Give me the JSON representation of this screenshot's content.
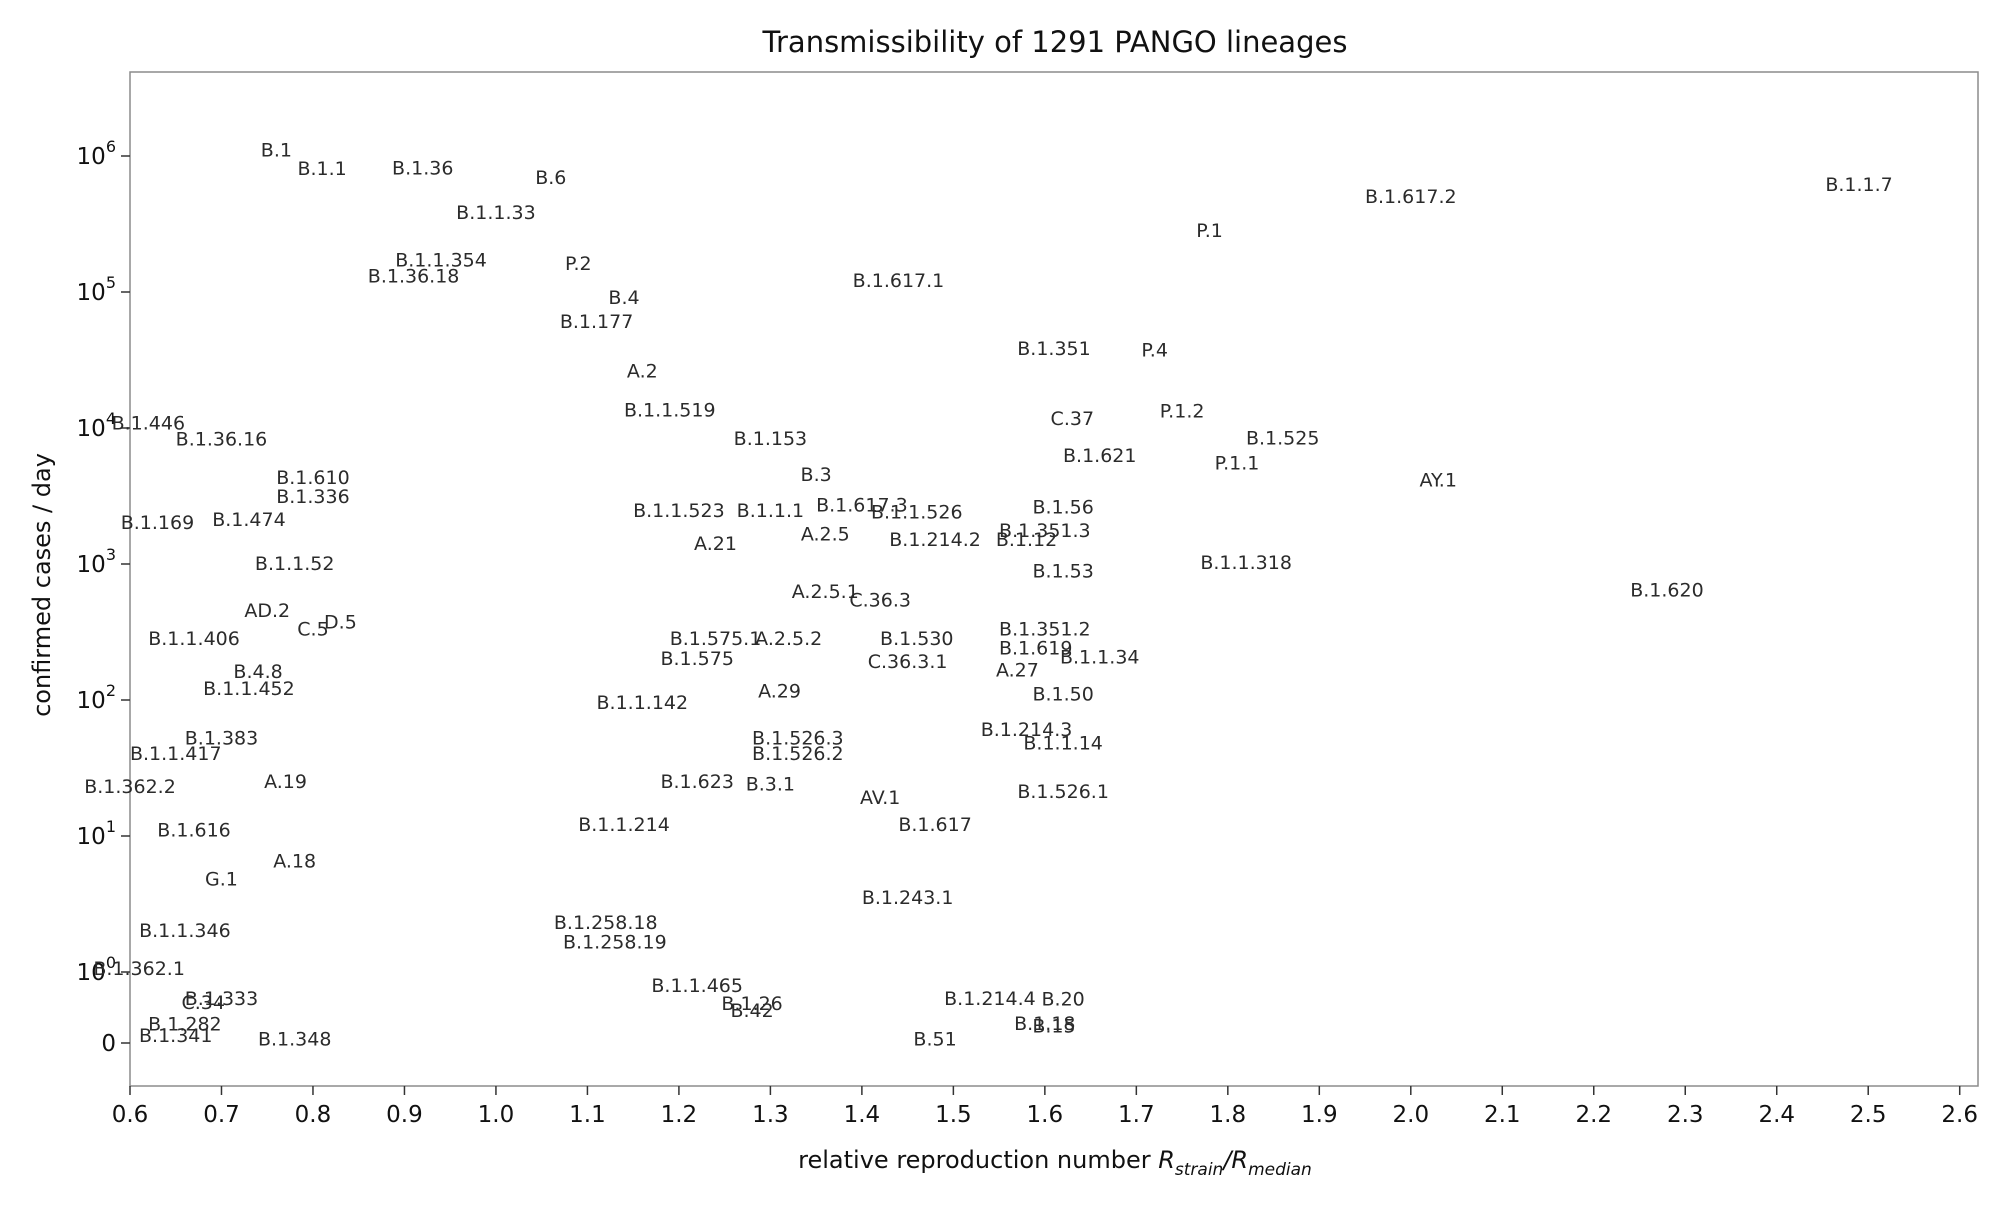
{
  "chart_data": {
    "type": "scatter",
    "title": "Transmissibility of 1291 PANGO lineages",
    "xlabel": "relative reproduction number R_strain/R_median",
    "ylabel": "confirmed cases / day",
    "xlim": [
      0.6,
      2.62
    ],
    "ylim_description": "symlog: 0, 10^0 .. 10^6",
    "x_ticks": [
      "0.6",
      "0.7",
      "0.8",
      "0.9",
      "1.0",
      "1.1",
      "1.2",
      "1.3",
      "1.4",
      "1.5",
      "1.6",
      "1.7",
      "1.8",
      "1.9",
      "2.0",
      "2.1",
      "2.2",
      "2.3",
      "2.4",
      "2.5",
      "2.6"
    ],
    "y_ticks": [
      {
        "base": "0",
        "exp": ""
      },
      {
        "base": "10",
        "exp": "0"
      },
      {
        "base": "10",
        "exp": "1"
      },
      {
        "base": "10",
        "exp": "2"
      },
      {
        "base": "10",
        "exp": "3"
      },
      {
        "base": "10",
        "exp": "4"
      },
      {
        "base": "10",
        "exp": "5"
      },
      {
        "base": "10",
        "exp": "6"
      }
    ],
    "grid": false,
    "legend": "none",
    "points": [
      {
        "label": "B.1",
        "x": 0.76,
        "y": 1100000
      },
      {
        "label": "B.1.1",
        "x": 0.81,
        "y": 800000
      },
      {
        "label": "B.1.36",
        "x": 0.92,
        "y": 810000
      },
      {
        "label": "B.6",
        "x": 1.06,
        "y": 690000
      },
      {
        "label": "B.1.1.33",
        "x": 1.0,
        "y": 380000
      },
      {
        "label": "B.1.1.7",
        "x": 2.49,
        "y": 610000
      },
      {
        "label": "B.1.617.2",
        "x": 2.0,
        "y": 500000
      },
      {
        "label": "P.1",
        "x": 1.78,
        "y": 280000
      },
      {
        "label": "B.1.617.1",
        "x": 1.44,
        "y": 120000
      },
      {
        "label": "B.1.36.18",
        "x": 0.91,
        "y": 130000
      },
      {
        "label": "B.1.1.354",
        "x": 0.94,
        "y": 170000
      },
      {
        "label": "P.2",
        "x": 1.09,
        "y": 160000
      },
      {
        "label": "B.4",
        "x": 1.14,
        "y": 90000
      },
      {
        "label": "B.1.177",
        "x": 1.11,
        "y": 60000
      },
      {
        "label": "A.2",
        "x": 1.16,
        "y": 26000
      },
      {
        "label": "B.1.351",
        "x": 1.61,
        "y": 38000
      },
      {
        "label": "P.4",
        "x": 1.72,
        "y": 37000
      },
      {
        "label": "B.1.446",
        "x": 0.62,
        "y": 10800
      },
      {
        "label": "B.1.36.16",
        "x": 0.7,
        "y": 8200
      },
      {
        "label": "B.1.1.519",
        "x": 1.19,
        "y": 13500
      },
      {
        "label": "B.1.153",
        "x": 1.3,
        "y": 8300
      },
      {
        "label": "C.37",
        "x": 1.63,
        "y": 11600
      },
      {
        "label": "P.1.2",
        "x": 1.75,
        "y": 13200
      },
      {
        "label": "B.1.525",
        "x": 1.86,
        "y": 8400
      },
      {
        "label": "B.1.621",
        "x": 1.66,
        "y": 6200
      },
      {
        "label": "P.1.1",
        "x": 1.81,
        "y": 5500
      },
      {
        "label": "AY.1",
        "x": 2.03,
        "y": 4100
      },
      {
        "label": "B.3",
        "x": 1.35,
        "y": 4500
      },
      {
        "label": "B.1.610",
        "x": 0.8,
        "y": 4300
      },
      {
        "label": "B.1.336",
        "x": 0.8,
        "y": 3100
      },
      {
        "label": "B.1.169",
        "x": 0.63,
        "y": 2000
      },
      {
        "label": "B.1.474",
        "x": 0.73,
        "y": 2100
      },
      {
        "label": "B.1.1.52",
        "x": 0.78,
        "y": 1000
      },
      {
        "label": "B.1.1.523",
        "x": 1.2,
        "y": 2450
      },
      {
        "label": "B.1.1.1",
        "x": 1.3,
        "y": 2450
      },
      {
        "label": "B.1.617.3",
        "x": 1.4,
        "y": 2700
      },
      {
        "label": "B.1.1.526",
        "x": 1.46,
        "y": 2400
      },
      {
        "label": "A.2.5",
        "x": 1.36,
        "y": 1650
      },
      {
        "label": "A.21",
        "x": 1.24,
        "y": 1400
      },
      {
        "label": "B.1.214.2",
        "x": 1.48,
        "y": 1500
      },
      {
        "label": "B.1.12",
        "x": 1.58,
        "y": 1500
      },
      {
        "label": "B.1.56",
        "x": 1.62,
        "y": 2600
      },
      {
        "label": "B.1.351.3",
        "x": 1.6,
        "y": 1750
      },
      {
        "label": "B.1.53",
        "x": 1.62,
        "y": 880
      },
      {
        "label": "B.1.1.318",
        "x": 1.82,
        "y": 1020
      },
      {
        "label": "B.1.620",
        "x": 2.28,
        "y": 640
      },
      {
        "label": "A.2.5.1",
        "x": 1.36,
        "y": 620
      },
      {
        "label": "C.36.3",
        "x": 1.42,
        "y": 540
      },
      {
        "label": "AD.2",
        "x": 0.75,
        "y": 450
      },
      {
        "label": "D.5",
        "x": 0.83,
        "y": 370
      },
      {
        "label": "C.5",
        "x": 0.8,
        "y": 330
      },
      {
        "label": "B.1.1.406",
        "x": 0.67,
        "y": 280
      },
      {
        "label": "B.1.351.2",
        "x": 1.6,
        "y": 330
      },
      {
        "label": "B.1.530",
        "x": 1.46,
        "y": 280
      },
      {
        "label": "B.1.619",
        "x": 1.59,
        "y": 240
      },
      {
        "label": "B.1.1.34",
        "x": 1.66,
        "y": 205
      },
      {
        "label": "B.1.575.1",
        "x": 1.24,
        "y": 280
      },
      {
        "label": "A.2.5.2",
        "x": 1.32,
        "y": 280
      },
      {
        "label": "B.1.575",
        "x": 1.22,
        "y": 200
      },
      {
        "label": "C.36.3.1",
        "x": 1.45,
        "y": 190
      },
      {
        "label": "A.27",
        "x": 1.57,
        "y": 165
      },
      {
        "label": "B.4.8",
        "x": 0.74,
        "y": 160
      },
      {
        "label": "B.1.1.452",
        "x": 0.73,
        "y": 120
      },
      {
        "label": "A.29",
        "x": 1.31,
        "y": 115
      },
      {
        "label": "B.1.50",
        "x": 1.62,
        "y": 110
      },
      {
        "label": "B.1.1.142",
        "x": 1.16,
        "y": 95
      },
      {
        "label": "B.1.214.3",
        "x": 1.58,
        "y": 60
      },
      {
        "label": "B.1.1.14",
        "x": 1.62,
        "y": 48
      },
      {
        "label": "B.1.526.3",
        "x": 1.33,
        "y": 52
      },
      {
        "label": "B.1.526.2",
        "x": 1.33,
        "y": 40
      },
      {
        "label": "B.1.383",
        "x": 0.7,
        "y": 52
      },
      {
        "label": "B.1.1.417",
        "x": 0.65,
        "y": 40
      },
      {
        "label": "B.1.362.2",
        "x": 0.6,
        "y": 23
      },
      {
        "label": "A.19",
        "x": 0.77,
        "y": 25
      },
      {
        "label": "B.1.623",
        "x": 1.22,
        "y": 25
      },
      {
        "label": "B.3.1",
        "x": 1.3,
        "y": 24
      },
      {
        "label": "AV.1",
        "x": 1.42,
        "y": 19
      },
      {
        "label": "B.1.526.1",
        "x": 1.62,
        "y": 21
      },
      {
        "label": "B.1.617",
        "x": 1.48,
        "y": 12
      },
      {
        "label": "B.1.1.214",
        "x": 1.14,
        "y": 12
      },
      {
        "label": "B.1.616",
        "x": 0.67,
        "y": 11
      },
      {
        "label": "A.18",
        "x": 0.78,
        "y": 6.5
      },
      {
        "label": "G.1",
        "x": 0.7,
        "y": 4.8
      },
      {
        "label": "B.1.243.1",
        "x": 1.45,
        "y": 3.5
      },
      {
        "label": "B.1.1.346",
        "x": 0.66,
        "y": 2.0
      },
      {
        "label": "B.1.258.18",
        "x": 1.12,
        "y": 2.3
      },
      {
        "label": "B.1.258.19",
        "x": 1.13,
        "y": 1.65
      },
      {
        "label": "B.1.362.1",
        "x": 0.61,
        "y": 1.05
      },
      {
        "label": "B.1.333",
        "x": 0.7,
        "y": 0.62
      },
      {
        "label": "C.34",
        "x": 0.68,
        "y": 0.56
      },
      {
        "label": "B.1.1.465",
        "x": 1.22,
        "y": 0.8
      },
      {
        "label": "B.1.26",
        "x": 1.28,
        "y": 0.55
      },
      {
        "label": "B.42",
        "x": 1.28,
        "y": 0.45
      },
      {
        "label": "B.1.214.4",
        "x": 1.54,
        "y": 0.62
      },
      {
        "label": "B.20",
        "x": 1.62,
        "y": 0.61
      },
      {
        "label": "B.1.18",
        "x": 1.6,
        "y": 0.27
      },
      {
        "label": "B.15",
        "x": 1.61,
        "y": 0.23
      },
      {
        "label": "B.1.282",
        "x": 0.66,
        "y": 0.26
      },
      {
        "label": "B.1.341",
        "x": 0.65,
        "y": 0.1
      },
      {
        "label": "B.1.348",
        "x": 0.78,
        "y": 0.05
      },
      {
        "label": "B.51",
        "x": 1.48,
        "y": 0.05
      }
    ]
  }
}
